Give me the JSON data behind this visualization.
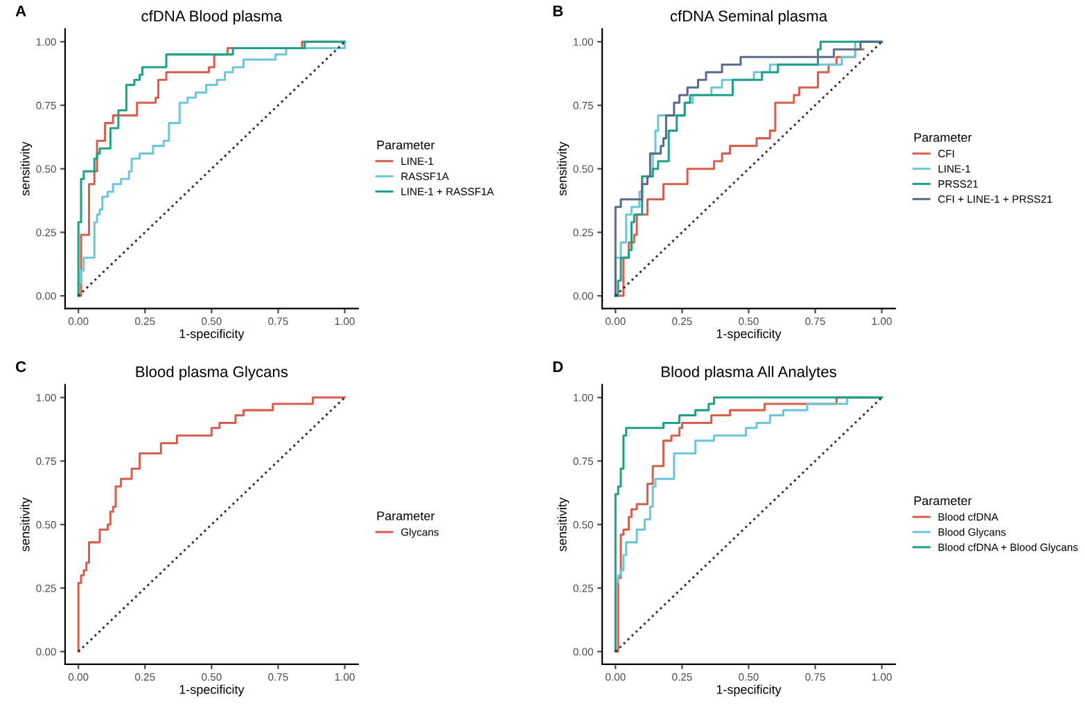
{
  "chart_data": [
    {
      "type": "step",
      "title": "cfDNA Blood plasma",
      "xlabel": "1-specificity",
      "ylabel": "sensitivity",
      "legend_title": "Parameter",
      "legend": "right",
      "annotations": [
        "A"
      ],
      "grid": false,
      "xlim": [
        -0.05,
        1.05
      ],
      "ylim": [
        -0.05,
        1.05
      ],
      "xticks": [
        {
          "value": 0,
          "label": "0.00"
        },
        {
          "value": 0.25,
          "label": "0.25"
        },
        {
          "value": 0.5,
          "label": "0.50"
        },
        {
          "value": 0.75,
          "label": "0.75"
        },
        {
          "value": 1,
          "label": "1.00"
        }
      ],
      "yticks": [
        {
          "value": 0,
          "label": "0.00"
        },
        {
          "value": 0.25,
          "label": "0.25"
        },
        {
          "value": 0.5,
          "label": "0.50"
        },
        {
          "value": 0.75,
          "label": "0.75"
        },
        {
          "value": 1,
          "label": "1.00"
        }
      ],
      "series": [
        {
          "name": "LINE-1",
          "color": "#d6604d",
          "x": [
            0,
            0.01,
            0.04,
            0.06,
            0.07,
            0.1,
            0.13,
            0.18,
            0.22,
            0.29,
            0.3,
            0.33,
            0.49,
            0.51,
            0.56,
            0.84,
            1.0
          ],
          "values": [
            0,
            0.24,
            0.44,
            0.49,
            0.61,
            0.68,
            0.71,
            0.71,
            0.76,
            0.78,
            0.85,
            0.88,
            0.9,
            0.95,
            0.975,
            1.0,
            1.0
          ]
        },
        {
          "name": "RASSF1A",
          "color": "#6fc6d8",
          "x": [
            0,
            0.0,
            0.01,
            0.02,
            0.06,
            0.07,
            0.08,
            0.09,
            0.11,
            0.13,
            0.16,
            0.19,
            0.2,
            0.23,
            0.28,
            0.32,
            0.34,
            0.38,
            0.41,
            0.44,
            0.48,
            0.52,
            0.55,
            0.58,
            0.62,
            0.74,
            0.78,
            1.0
          ],
          "values": [
            0,
            0.05,
            0.1,
            0.15,
            0.29,
            0.32,
            0.34,
            0.39,
            0.41,
            0.44,
            0.46,
            0.49,
            0.54,
            0.56,
            0.59,
            0.61,
            0.68,
            0.76,
            0.78,
            0.8,
            0.83,
            0.85,
            0.88,
            0.9,
            0.93,
            0.95,
            0.975,
            1.0
          ]
        },
        {
          "name": "LINE-1 + RASSF1A",
          "color": "#1fa187",
          "x": [
            0,
            0.0,
            0.01,
            0.02,
            0.06,
            0.07,
            0.08,
            0.12,
            0.15,
            0.18,
            0.21,
            0.23,
            0.24,
            0.33,
            0.58,
            0.85,
            1.0
          ],
          "values": [
            0,
            0.29,
            0.46,
            0.49,
            0.54,
            0.56,
            0.58,
            0.66,
            0.73,
            0.83,
            0.85,
            0.87,
            0.9,
            0.95,
            0.975,
            1.0,
            1.0
          ]
        },
        {
          "type": "line",
          "line_style": "dotted",
          "color": "#333333",
          "x": [
            0,
            1
          ],
          "values": [
            0,
            1
          ]
        }
      ]
    },
    {
      "type": "step",
      "title": "cfDNA Seminal plasma",
      "xlabel": "1-specificity",
      "ylabel": "sensitivity",
      "legend_title": "Parameter",
      "legend": "right",
      "annotations": [
        "B"
      ],
      "grid": false,
      "xlim": [
        -0.05,
        1.05
      ],
      "ylim": [
        -0.05,
        1.05
      ],
      "xticks": [
        {
          "value": 0,
          "label": "0.00"
        },
        {
          "value": 0.25,
          "label": "0.25"
        },
        {
          "value": 0.5,
          "label": "0.50"
        },
        {
          "value": 0.75,
          "label": "0.75"
        },
        {
          "value": 1,
          "label": "1.00"
        }
      ],
      "yticks": [
        {
          "value": 0,
          "label": "0.00"
        },
        {
          "value": 0.25,
          "label": "0.25"
        },
        {
          "value": 0.5,
          "label": "0.50"
        },
        {
          "value": 0.75,
          "label": "0.75"
        },
        {
          "value": 1,
          "label": "1.00"
        }
      ],
      "series": [
        {
          "name": "CFI",
          "color": "#d6604d",
          "x": [
            0,
            0.03,
            0.05,
            0.07,
            0.08,
            0.12,
            0.18,
            0.27,
            0.37,
            0.4,
            0.43,
            0.53,
            0.58,
            0.6,
            0.67,
            0.69,
            0.76,
            0.8,
            0.83,
            0.9,
            0.93
          ],
          "values": [
            0,
            0.15,
            0.21,
            0.24,
            0.32,
            0.38,
            0.44,
            0.5,
            0.53,
            0.56,
            0.59,
            0.62,
            0.65,
            0.76,
            0.79,
            0.82,
            0.88,
            0.91,
            0.94,
            0.97,
            0.97
          ]
        },
        {
          "name": "LINE-1",
          "color": "#6fc6d8",
          "x": [
            0,
            0.0,
            0.02,
            0.04,
            0.06,
            0.09,
            0.1,
            0.14,
            0.15,
            0.16,
            0.26,
            0.29,
            0.36,
            0.4,
            0.52,
            0.58,
            0.85,
            0.9,
            1.0
          ],
          "values": [
            0,
            0.15,
            0.21,
            0.32,
            0.35,
            0.41,
            0.47,
            0.56,
            0.65,
            0.71,
            0.76,
            0.79,
            0.82,
            0.85,
            0.88,
            0.91,
            0.94,
            1.0,
            1.0
          ]
        },
        {
          "name": "PRSS21",
          "color": "#1fa187",
          "x": [
            0,
            0.01,
            0.02,
            0.05,
            0.06,
            0.07,
            0.1,
            0.14,
            0.16,
            0.2,
            0.23,
            0.26,
            0.28,
            0.44,
            0.55,
            0.61,
            0.76,
            0.77,
            1.0
          ],
          "values": [
            0,
            0.06,
            0.15,
            0.18,
            0.29,
            0.32,
            0.47,
            0.5,
            0.53,
            0.65,
            0.71,
            0.76,
            0.79,
            0.85,
            0.88,
            0.91,
            0.97,
            1.0,
            1.0
          ]
        },
        {
          "name": "CFI + LINE-1 + PRSS21",
          "color": "#5c6b8a",
          "x": [
            0,
            0.0,
            0.02,
            0.1,
            0.12,
            0.13,
            0.17,
            0.18,
            0.19,
            0.22,
            0.24,
            0.27,
            0.31,
            0.34,
            0.4,
            0.47,
            0.82,
            0.92,
            1.0
          ],
          "values": [
            0,
            0.35,
            0.38,
            0.44,
            0.47,
            0.56,
            0.59,
            0.62,
            0.71,
            0.76,
            0.79,
            0.82,
            0.85,
            0.88,
            0.91,
            0.94,
            0.97,
            1.0,
            1.0
          ]
        },
        {
          "type": "line",
          "line_style": "dotted",
          "color": "#333333",
          "x": [
            0,
            1
          ],
          "values": [
            0,
            1
          ]
        }
      ]
    },
    {
      "type": "step",
      "title": "Blood plasma Glycans",
      "xlabel": "1-specificity",
      "ylabel": "sensitivity",
      "legend_title": "Parameter",
      "legend": "right",
      "annotations": [
        "C"
      ],
      "grid": false,
      "xlim": [
        -0.05,
        1.05
      ],
      "ylim": [
        -0.05,
        1.05
      ],
      "xticks": [
        {
          "value": 0,
          "label": "0.00"
        },
        {
          "value": 0.25,
          "label": "0.25"
        },
        {
          "value": 0.5,
          "label": "0.50"
        },
        {
          "value": 0.75,
          "label": "0.75"
        },
        {
          "value": 1,
          "label": "1.00"
        }
      ],
      "yticks": [
        {
          "value": 0,
          "label": "0.00"
        },
        {
          "value": 0.25,
          "label": "0.25"
        },
        {
          "value": 0.5,
          "label": "0.50"
        },
        {
          "value": 0.75,
          "label": "0.75"
        },
        {
          "value": 1,
          "label": "1.00"
        }
      ],
      "series": [
        {
          "name": "Glycans",
          "color": "#d6604d",
          "x": [
            0,
            0.0,
            0.01,
            0.02,
            0.03,
            0.04,
            0.08,
            0.11,
            0.12,
            0.13,
            0.14,
            0.16,
            0.2,
            0.23,
            0.31,
            0.37,
            0.5,
            0.53,
            0.59,
            0.62,
            0.73,
            0.88,
            1.0
          ],
          "values": [
            0,
            0.27,
            0.3,
            0.32,
            0.35,
            0.43,
            0.48,
            0.5,
            0.55,
            0.57,
            0.65,
            0.68,
            0.72,
            0.78,
            0.82,
            0.85,
            0.88,
            0.9,
            0.93,
            0.95,
            0.975,
            1.0,
            1.0
          ]
        },
        {
          "type": "line",
          "line_style": "dotted",
          "color": "#333333",
          "x": [
            0,
            1
          ],
          "values": [
            0,
            1
          ]
        }
      ]
    },
    {
      "type": "step",
      "title": "Blood plasma All Analytes",
      "xlabel": "1-specificity",
      "ylabel": "sensitivity",
      "legend_title": "Parameter",
      "legend": "right",
      "annotations": [
        "D"
      ],
      "grid": false,
      "xlim": [
        -0.05,
        1.05
      ],
      "ylim": [
        -0.05,
        1.05
      ],
      "xticks": [
        {
          "value": 0,
          "label": "0.00"
        },
        {
          "value": 0.25,
          "label": "0.25"
        },
        {
          "value": 0.5,
          "label": "0.50"
        },
        {
          "value": 0.75,
          "label": "0.75"
        },
        {
          "value": 1,
          "label": "1.00"
        }
      ],
      "yticks": [
        {
          "value": 0,
          "label": "0.00"
        },
        {
          "value": 0.25,
          "label": "0.25"
        },
        {
          "value": 0.5,
          "label": "0.50"
        },
        {
          "value": 0.75,
          "label": "0.75"
        },
        {
          "value": 1,
          "label": "1.00"
        }
      ],
      "series": [
        {
          "name": "Blood cfDNA",
          "color": "#d6604d",
          "x": [
            0,
            0.01,
            0.02,
            0.03,
            0.05,
            0.06,
            0.08,
            0.12,
            0.14,
            0.18,
            0.21,
            0.24,
            0.25,
            0.36,
            0.43,
            0.56,
            0.83,
            1.0
          ],
          "values": [
            0,
            0.29,
            0.46,
            0.48,
            0.53,
            0.56,
            0.58,
            0.66,
            0.73,
            0.83,
            0.85,
            0.88,
            0.9,
            0.93,
            0.95,
            0.975,
            1.0,
            1.0
          ]
        },
        {
          "name": "Blood Glycans",
          "color": "#6fc6d8",
          "x": [
            0,
            0.0,
            0.01,
            0.02,
            0.03,
            0.04,
            0.08,
            0.11,
            0.13,
            0.14,
            0.15,
            0.22,
            0.3,
            0.37,
            0.49,
            0.53,
            0.58,
            0.63,
            0.72,
            0.87,
            1.0
          ],
          "values": [
            0,
            0.27,
            0.3,
            0.32,
            0.38,
            0.43,
            0.48,
            0.52,
            0.57,
            0.65,
            0.68,
            0.78,
            0.83,
            0.85,
            0.88,
            0.9,
            0.93,
            0.95,
            0.975,
            1.0,
            1.0
          ]
        },
        {
          "name": "Blood cfDNA + Blood Glycans",
          "color": "#1fa187",
          "x": [
            0,
            0.0,
            0.01,
            0.02,
            0.03,
            0.04,
            0.18,
            0.24,
            0.3,
            0.35,
            0.37,
            1.0
          ],
          "values": [
            0,
            0.62,
            0.65,
            0.72,
            0.85,
            0.88,
            0.9,
            0.93,
            0.95,
            0.975,
            1.0,
            1.0
          ]
        },
        {
          "type": "line",
          "line_style": "dotted",
          "color": "#333333",
          "x": [
            0,
            1
          ],
          "values": [
            0,
            1
          ]
        }
      ]
    }
  ]
}
